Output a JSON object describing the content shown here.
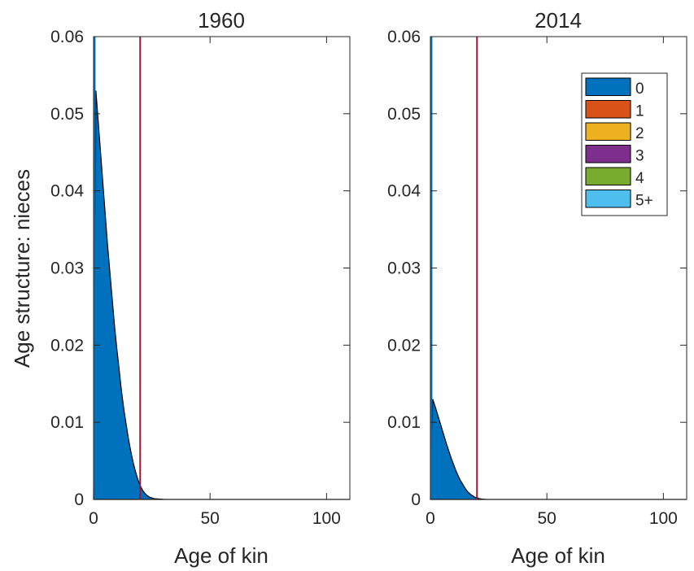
{
  "chart_data": [
    {
      "type": "area",
      "title": "1960",
      "xlabel": "Age of kin",
      "ylabel": "Age structure: nieces",
      "xlim": [
        0,
        110
      ],
      "ylim": [
        0,
        0.06
      ],
      "xticks": [
        0,
        50,
        100
      ],
      "xtick_labels": [
        "0",
        "50",
        "100"
      ],
      "yticks": [
        0,
        0.01,
        0.02,
        0.03,
        0.04,
        0.05,
        0.06
      ],
      "ytick_labels": [
        "0",
        "0.01",
        "0.02",
        "0.03",
        "0.04",
        "0.05",
        "0.06"
      ],
      "grid": false,
      "reference_lines": [
        {
          "x": 0.5,
          "color": "#0072BD"
        },
        {
          "x": 20,
          "color": "#A2142F"
        }
      ],
      "series": [
        {
          "name": "0",
          "color": "#0072BD",
          "x": [
            0,
            1,
            2,
            3,
            4,
            5,
            6,
            7,
            8,
            9,
            10,
            11,
            12,
            13,
            14,
            15,
            16,
            17,
            18,
            19,
            20,
            21,
            22,
            23,
            24,
            25,
            26,
            28,
            30,
            35,
            40,
            50,
            60,
            80,
            100,
            110
          ],
          "y": [
            0.0,
            0.053,
            0.049,
            0.045,
            0.041,
            0.037,
            0.033,
            0.0295,
            0.026,
            0.0225,
            0.0195,
            0.0168,
            0.014,
            0.0117,
            0.0097,
            0.0078,
            0.0062,
            0.0048,
            0.0036,
            0.0026,
            0.0018,
            0.0012,
            0.0008,
            0.0005,
            0.0003,
            0.0002,
            0.0001,
            5e-05,
            2e-05,
            0.0,
            0.0,
            0.0,
            0.0,
            0.0,
            0.0,
            0.0
          ]
        },
        {
          "name": "1",
          "color": "#D95319",
          "x": [
            0,
            110
          ],
          "y": [
            0,
            0
          ]
        },
        {
          "name": "2",
          "color": "#EDB120",
          "x": [
            0,
            110
          ],
          "y": [
            0,
            0
          ]
        },
        {
          "name": "3",
          "color": "#7E2F8E",
          "x": [
            0,
            110
          ],
          "y": [
            0,
            0
          ]
        },
        {
          "name": "4",
          "color": "#77AC30",
          "x": [
            0,
            110
          ],
          "y": [
            0,
            0
          ]
        },
        {
          "name": "5+",
          "color": "#4DBEEE",
          "x": [
            0,
            110
          ],
          "y": [
            0,
            0
          ]
        }
      ]
    },
    {
      "type": "area",
      "title": "2014",
      "xlabel": "Age of kin",
      "ylabel": "",
      "xlim": [
        0,
        110
      ],
      "ylim": [
        0,
        0.06
      ],
      "xticks": [
        0,
        50,
        100
      ],
      "xtick_labels": [
        "0",
        "50",
        "100"
      ],
      "yticks": [
        0,
        0.01,
        0.02,
        0.03,
        0.04,
        0.05,
        0.06
      ],
      "ytick_labels": [
        "0",
        "0.01",
        "0.02",
        "0.03",
        "0.04",
        "0.05",
        "0.06"
      ],
      "grid": false,
      "legend": {
        "placement": "top-right",
        "entries": [
          "0",
          "1",
          "2",
          "3",
          "4",
          "5+"
        ]
      },
      "reference_lines": [
        {
          "x": 0.5,
          "color": "#0072BD"
        },
        {
          "x": 20,
          "color": "#A2142F"
        }
      ],
      "series": [
        {
          "name": "0",
          "color": "#0072BD",
          "x": [
            0,
            1,
            2,
            3,
            4,
            5,
            6,
            7,
            8,
            9,
            10,
            11,
            12,
            13,
            14,
            15,
            16,
            17,
            18,
            19,
            20,
            21,
            22,
            23,
            24,
            25,
            26,
            28,
            30,
            35,
            40,
            50,
            60,
            80,
            100,
            110
          ],
          "y": [
            0.0,
            0.013,
            0.0121,
            0.0111,
            0.0101,
            0.0091,
            0.0081,
            0.0071,
            0.0062,
            0.0053,
            0.0045,
            0.0037,
            0.003,
            0.0024,
            0.0019,
            0.0014,
            0.001,
            0.0007,
            0.0005,
            0.0003,
            0.0002,
            0.0001,
            6e-05,
            3e-05,
            1e-05,
            0.0,
            0.0,
            0.0,
            0.0,
            0.0,
            0.0,
            0.0,
            0.0,
            0.0,
            0.0,
            0.0
          ]
        },
        {
          "name": "1",
          "color": "#D95319",
          "x": [
            0,
            110
          ],
          "y": [
            0,
            0
          ]
        },
        {
          "name": "2",
          "color": "#EDB120",
          "x": [
            0,
            110
          ],
          "y": [
            0,
            0
          ]
        },
        {
          "name": "3",
          "color": "#7E2F8E",
          "x": [
            0,
            110
          ],
          "y": [
            0,
            0
          ]
        },
        {
          "name": "4",
          "color": "#77AC30",
          "x": [
            0,
            110
          ],
          "y": [
            0,
            0
          ]
        },
        {
          "name": "5+",
          "color": "#4DBEEE",
          "x": [
            0,
            110
          ],
          "y": [
            0,
            0
          ]
        }
      ]
    }
  ]
}
